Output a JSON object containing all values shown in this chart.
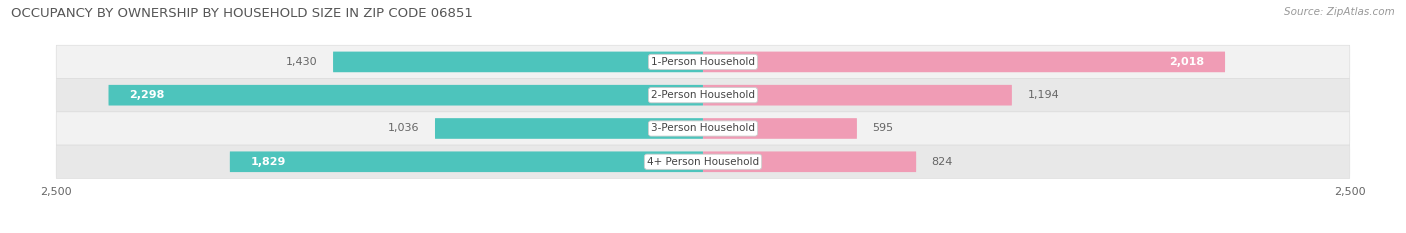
{
  "title": "OCCUPANCY BY OWNERSHIP BY HOUSEHOLD SIZE IN ZIP CODE 06851",
  "source": "Source: ZipAtlas.com",
  "categories": [
    "1-Person Household",
    "2-Person Household",
    "3-Person Household",
    "4+ Person Household"
  ],
  "owner_values": [
    1430,
    2298,
    1036,
    1829
  ],
  "renter_values": [
    2018,
    1194,
    595,
    824
  ],
  "owner_color": "#4DC4BC",
  "renter_color": "#F09CB5",
  "xlim": 2500,
  "bar_height": 0.62,
  "background_color": "#FFFFFF",
  "title_fontsize": 9.5,
  "label_fontsize": 8,
  "tick_fontsize": 8,
  "source_fontsize": 7.5,
  "row_bg_light": "#F2F2F2",
  "row_bg_dark": "#E8E8E8",
  "row_border_color": "#DDDDDD"
}
